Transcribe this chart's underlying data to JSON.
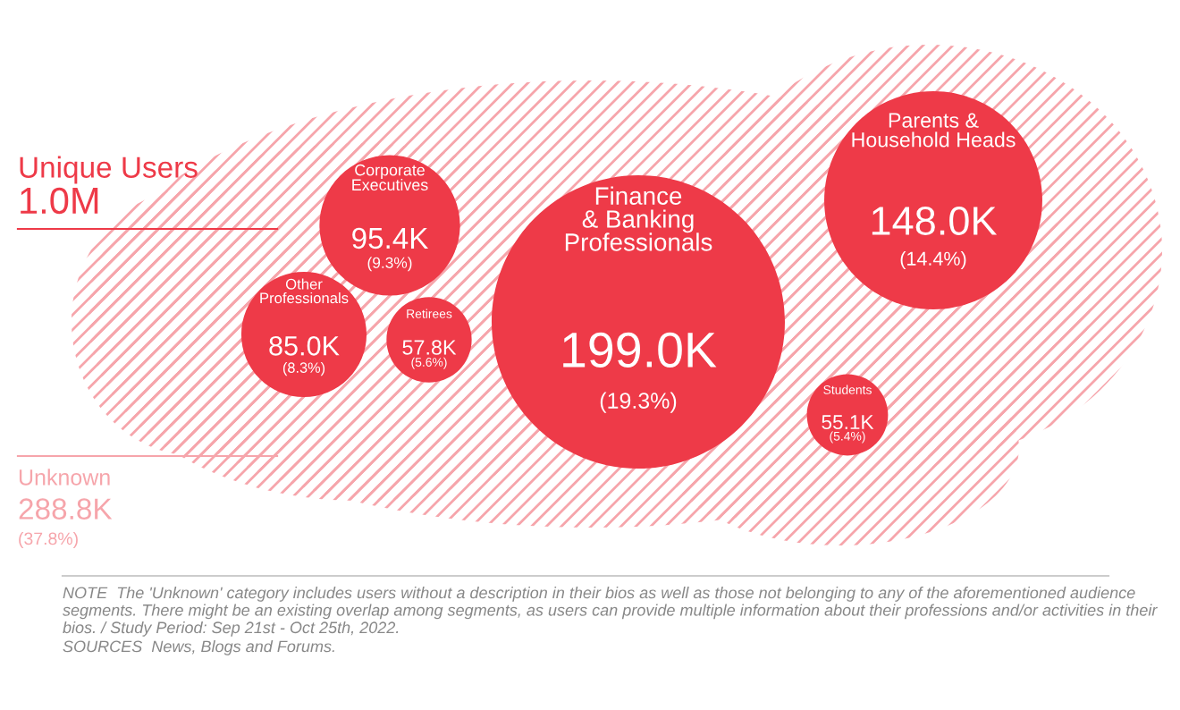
{
  "chart_data": {
    "type": "other",
    "title": "Unique Users",
    "subtitle": "1.0M",
    "categories": [
      "Finance\n& Banking\nProfessionals",
      "Parents &\nHousehold Heads",
      "Corporate\nExecutives",
      "Other\nProfessionals",
      "Retirees",
      "Students",
      "Unknown"
    ],
    "values": [
      199.0,
      148.0,
      95.4,
      85.0,
      57.8,
      55.1,
      288.8
    ],
    "value_labels": [
      "199.0K",
      "148.0K",
      "95.4K",
      "85.0K",
      "57.8K",
      "55.1K",
      "288.8K"
    ],
    "colors": [
      "#ee3a48",
      "#ee3a48",
      "#ee3a48",
      "#ee3a48",
      "#ee3a48",
      "#ee3a48",
      "#f6a5ab"
    ],
    "annotations": [
      "(19.3%)",
      "(14.4%)",
      "(9.3%)",
      "(8.3%)",
      "(5.6%)",
      "(5.4%)",
      "(37.8%)",
      "NOTE  The 'Unknown' category includes users without a description in their bios as well as those not belonging to any of the aforementioned audience segments. There might be an existing overlap among segments, as users can provide multiple information about their professions and/or activities in their bios. / Study Period: Sep 21st - Oct 25th, 2022.",
      "SOURCES  News, Blogs and Forums."
    ]
  }
}
